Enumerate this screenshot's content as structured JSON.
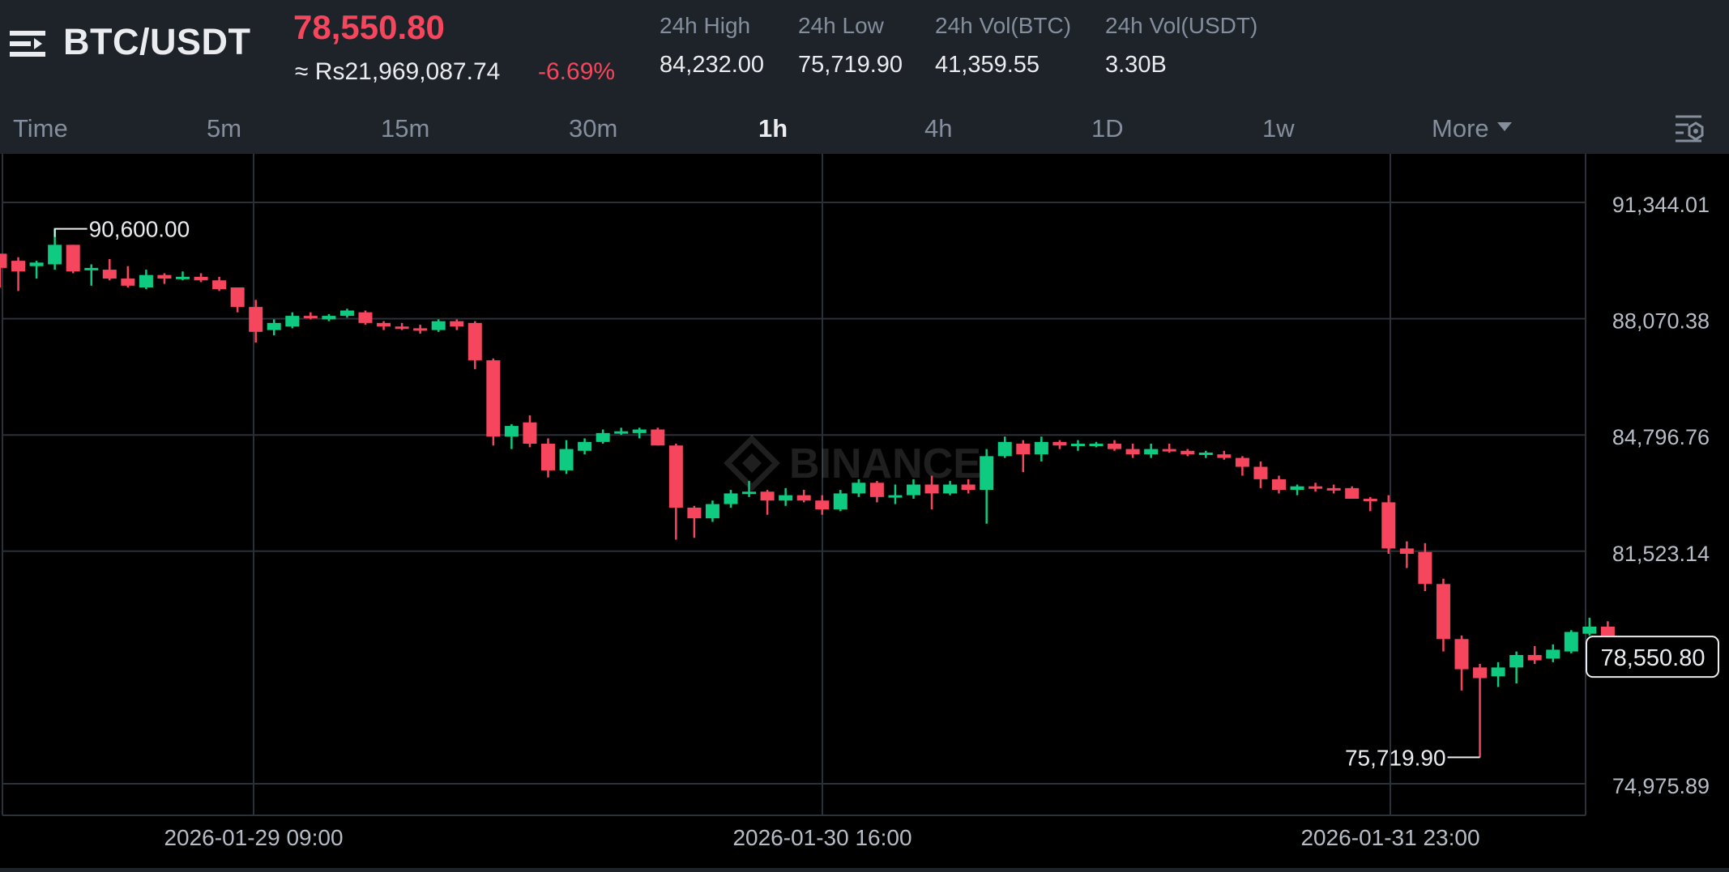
{
  "header": {
    "pair": "BTC/USDT",
    "last_price": "78,550.80",
    "approx_price": "≈ Rs21,969,087.74",
    "change_pct": "-6.69%",
    "stats": [
      {
        "label": "24h High",
        "value": "84,232.00"
      },
      {
        "label": "24h Low",
        "value": "75,719.90"
      },
      {
        "label": "24h Vol(BTC)",
        "value": "41,359.55"
      },
      {
        "label": "24h Vol(USDT)",
        "value": "3.30B"
      }
    ],
    "colors": {
      "up": "#0ecb81",
      "down": "#f6465d",
      "bg": "#1e2329",
      "chart_bg": "#000000",
      "muted": "#848e9c"
    },
    "icons": {
      "menu": "menu-icon",
      "settings": "chart-settings-icon"
    }
  },
  "intervals": {
    "items": [
      "Time",
      "5m",
      "15m",
      "30m",
      "1h",
      "4h",
      "1D",
      "1w",
      "More"
    ],
    "active": "1h"
  },
  "chart_data": {
    "type": "candlestick",
    "interval": "1h",
    "watermark": "BINANCE",
    "y_ticks": [
      "91,344.01",
      "88,070.38",
      "84,796.76",
      "81,523.14",
      "74,975.89"
    ],
    "x_ticks": [
      "2026-01-29 09:00",
      "2026-01-30 16:00",
      "2026-01-31 23:00"
    ],
    "last_price_label": "78,550.80",
    "high_marker": "90,600.00",
    "low_marker": "75,719.90",
    "ylim": [
      74600,
      92350
    ],
    "grid": true,
    "candles": [
      [
        89900,
        89900,
        88950,
        89500
      ],
      [
        89700,
        89800,
        88850,
        89400
      ],
      [
        89550,
        89700,
        89200,
        89650
      ],
      [
        89600,
        90600,
        89450,
        90150
      ],
      [
        90150,
        90150,
        89350,
        89400
      ],
      [
        89450,
        89600,
        89000,
        89500
      ],
      [
        89450,
        89750,
        89150,
        89200
      ],
      [
        89200,
        89550,
        88950,
        89000
      ],
      [
        88950,
        89450,
        88900,
        89300
      ],
      [
        89300,
        89350,
        89050,
        89200
      ],
      [
        89200,
        89400,
        89150,
        89250
      ],
      [
        89250,
        89350,
        89100,
        89150
      ],
      [
        89150,
        89250,
        88850,
        88900
      ],
      [
        88950,
        88950,
        88250,
        88400
      ],
      [
        88400,
        88600,
        87400,
        87700
      ],
      [
        87750,
        88050,
        87600,
        87950
      ],
      [
        87850,
        88250,
        87800,
        88150
      ],
      [
        88150,
        88250,
        88050,
        88100
      ],
      [
        88050,
        88200,
        88000,
        88150
      ],
      [
        88150,
        88350,
        88100,
        88300
      ],
      [
        88250,
        88300,
        87900,
        87950
      ],
      [
        87950,
        88000,
        87750,
        87850
      ],
      [
        87850,
        87950,
        87750,
        87800
      ],
      [
        87800,
        87900,
        87650,
        87750
      ],
      [
        87750,
        88050,
        87700,
        88000
      ],
      [
        88000,
        88050,
        87750,
        87850
      ],
      [
        87950,
        88000,
        86650,
        86900
      ],
      [
        86900,
        86950,
        84500,
        84750
      ],
      [
        84750,
        85100,
        84400,
        85050
      ],
      [
        85150,
        85350,
        84450,
        84550
      ],
      [
        84550,
        84700,
        83600,
        83800
      ],
      [
        83800,
        84650,
        83700,
        84400
      ],
      [
        84350,
        84700,
        84250,
        84600
      ],
      [
        84600,
        84950,
        84550,
        84850
      ],
      [
        84850,
        85000,
        84800,
        84900
      ],
      [
        84850,
        85000,
        84700,
        84950
      ],
      [
        84950,
        85000,
        84500,
        84500
      ],
      [
        84500,
        84550,
        81850,
        82750
      ],
      [
        82750,
        82800,
        81900,
        82450
      ],
      [
        82450,
        82950,
        82350,
        82850
      ],
      [
        82850,
        83250,
        82750,
        83150
      ],
      [
        83150,
        83500,
        83050,
        83200
      ],
      [
        83200,
        83250,
        82550,
        82950
      ],
      [
        82950,
        83300,
        82800,
        83100
      ],
      [
        83100,
        83250,
        82900,
        82950
      ],
      [
        82950,
        83100,
        82550,
        82700
      ],
      [
        82700,
        83250,
        82650,
        83150
      ],
      [
        83150,
        83550,
        83050,
        83450
      ],
      [
        83450,
        83500,
        82900,
        83050
      ],
      [
        83050,
        83400,
        82850,
        83100
      ],
      [
        83100,
        83550,
        83000,
        83400
      ],
      [
        83400,
        83650,
        82700,
        83150
      ],
      [
        83150,
        83500,
        83100,
        83400
      ],
      [
        83400,
        83550,
        83150,
        83250
      ],
      [
        83250,
        84400,
        82300,
        84200
      ],
      [
        84200,
        84750,
        84150,
        84600
      ],
      [
        84550,
        84650,
        83750,
        84250
      ],
      [
        84250,
        84750,
        84050,
        84600
      ],
      [
        84600,
        84650,
        84400,
        84500
      ],
      [
        84500,
        84650,
        84350,
        84550
      ],
      [
        84550,
        84600,
        84450,
        84550
      ],
      [
        84550,
        84650,
        84350,
        84400
      ],
      [
        84400,
        84550,
        84150,
        84250
      ],
      [
        84250,
        84550,
        84150,
        84400
      ],
      [
        84400,
        84550,
        84300,
        84350
      ],
      [
        84350,
        84400,
        84200,
        84250
      ],
      [
        84250,
        84350,
        84150,
        84300
      ],
      [
        84250,
        84350,
        84100,
        84150
      ],
      [
        84150,
        84200,
        83650,
        83900
      ],
      [
        83900,
        84050,
        83300,
        83550
      ],
      [
        83550,
        83650,
        83150,
        83250
      ],
      [
        83250,
        83400,
        83100,
        83350
      ],
      [
        83350,
        83450,
        83200,
        83300
      ],
      [
        83300,
        83400,
        83150,
        83250
      ],
      [
        83300,
        83350,
        83000,
        83000
      ],
      [
        83000,
        83050,
        82650,
        82950
      ],
      [
        82900,
        83100,
        81450,
        81600
      ],
      [
        81600,
        81800,
        81050,
        81450
      ],
      [
        81500,
        81750,
        80400,
        80600
      ],
      [
        80600,
        80750,
        78700,
        79050
      ],
      [
        79050,
        79150,
        77600,
        78200
      ],
      [
        78250,
        78350,
        75719.9,
        77950
      ],
      [
        78000,
        78400,
        77700,
        78250
      ],
      [
        78250,
        78700,
        77800,
        78600
      ],
      [
        78600,
        78850,
        78350,
        78450
      ],
      [
        78500,
        78900,
        78400,
        78750
      ],
      [
        78700,
        79300,
        78650,
        79250
      ],
      [
        79200,
        79650,
        79150,
        79400
      ],
      [
        79400,
        79550,
        78900,
        79000
      ]
    ]
  }
}
